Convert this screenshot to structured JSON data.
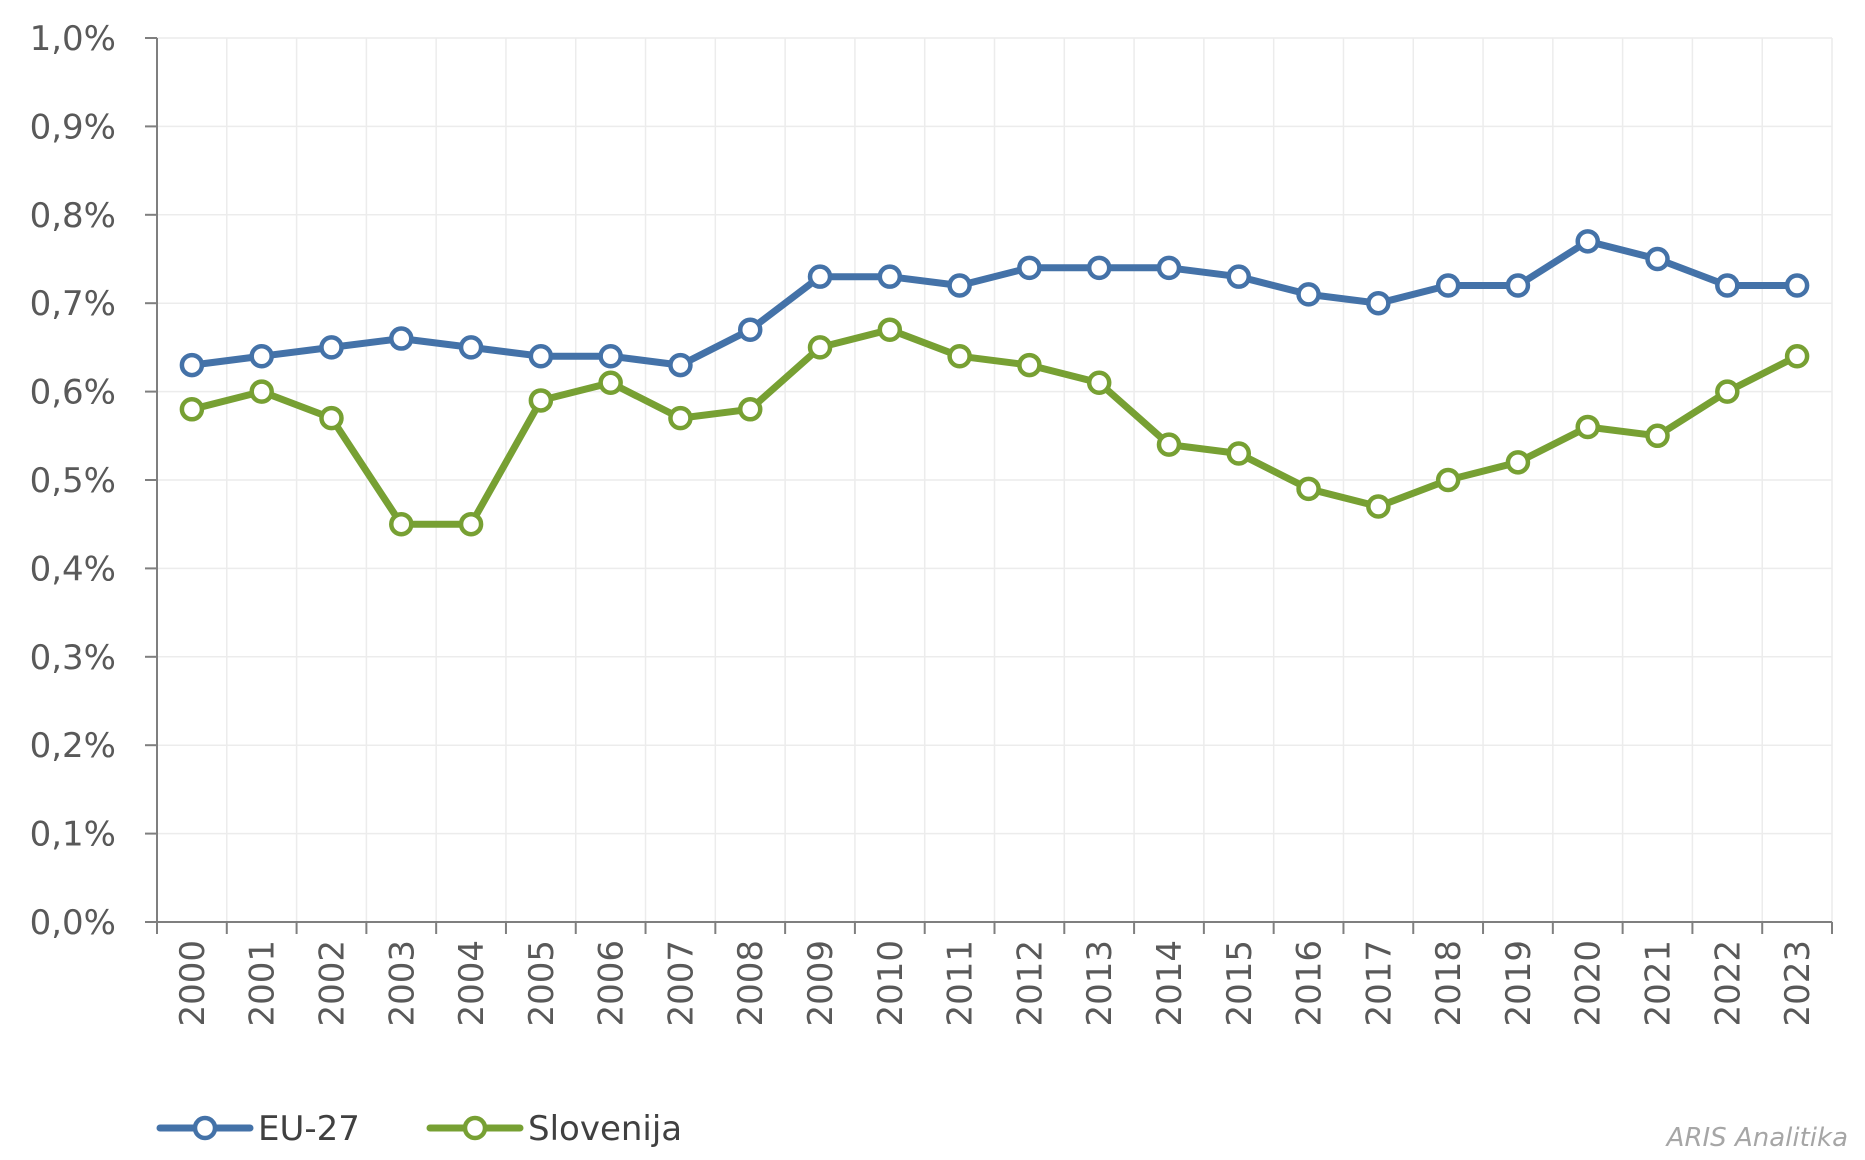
{
  "chart_data": {
    "type": "line",
    "x": [
      "2000",
      "2001",
      "2002",
      "2003",
      "2004",
      "2005",
      "2006",
      "2007",
      "2008",
      "2009",
      "2010",
      "2011",
      "2012",
      "2013",
      "2014",
      "2015",
      "2016",
      "2017",
      "2018",
      "2019",
      "2020",
      "2021",
      "2022",
      "2023"
    ],
    "series": [
      {
        "name": "EU-27",
        "color": "#4472a8",
        "values": [
          0.63,
          0.64,
          0.65,
          0.66,
          0.65,
          0.64,
          0.64,
          0.63,
          0.67,
          0.73,
          0.73,
          0.72,
          0.74,
          0.74,
          0.74,
          0.73,
          0.71,
          0.7,
          0.72,
          0.72,
          0.77,
          0.75,
          0.72,
          0.72
        ]
      },
      {
        "name": "Slovenija",
        "color": "#77a033",
        "values": [
          0.58,
          0.6,
          0.57,
          0.45,
          0.45,
          0.59,
          0.61,
          0.57,
          0.58,
          0.65,
          0.67,
          0.64,
          0.63,
          0.61,
          0.54,
          0.53,
          0.49,
          0.47,
          0.5,
          0.52,
          0.56,
          0.55,
          0.6,
          0.64
        ]
      }
    ],
    "y_ticks": [
      "0,0%",
      "0,1%",
      "0,2%",
      "0,3%",
      "0,4%",
      "0,5%",
      "0,6%",
      "0,7%",
      "0,8%",
      "0,9%",
      "1,0%"
    ],
    "ylim": [
      0,
      1.0
    ],
    "grid": true,
    "legend_position": "bottom-left",
    "credit": "ARIS Analitika"
  }
}
